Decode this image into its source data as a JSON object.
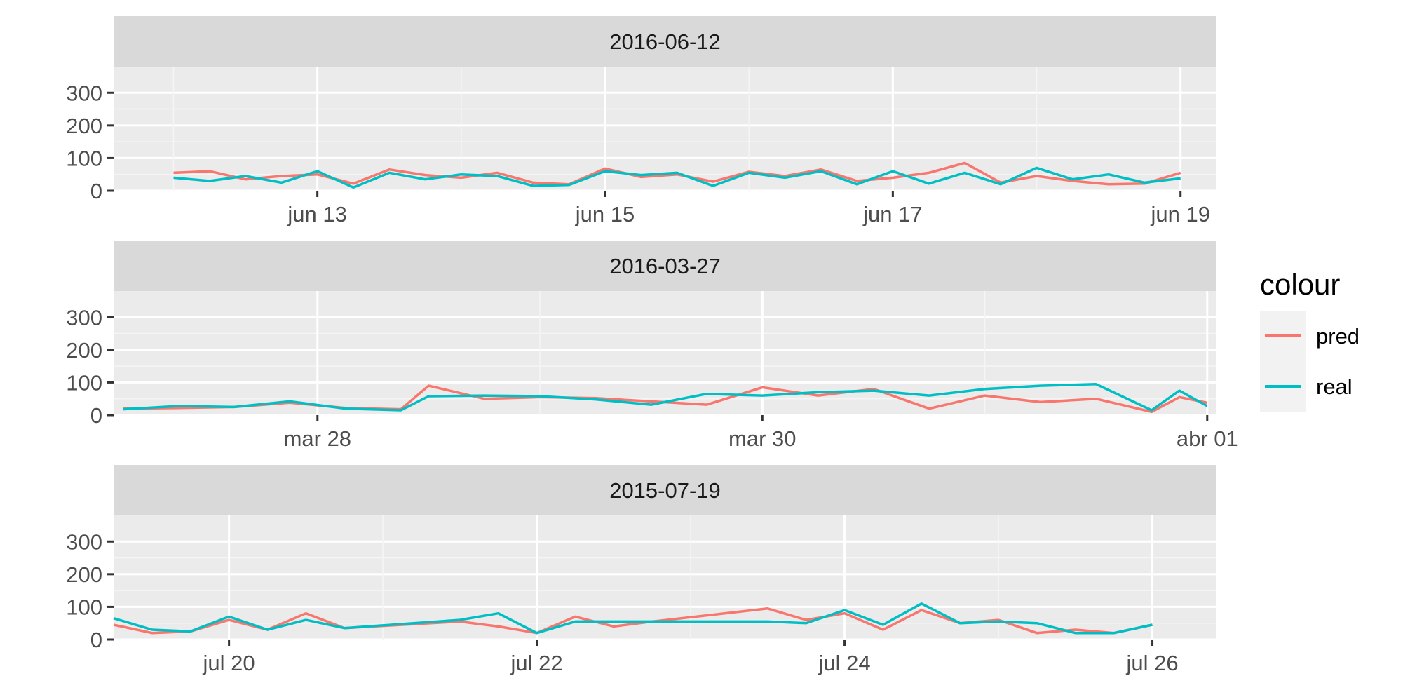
{
  "chart_data": {
    "type": "line",
    "facet_by": "date",
    "y_ticks": [
      0,
      100,
      200,
      300
    ],
    "ylim": [
      0,
      380
    ],
    "legend": {
      "title": "colour",
      "placement": "right",
      "entries": [
        {
          "name": "pred",
          "color": "#F8766D"
        },
        {
          "name": "real",
          "color": "#00BFC4"
        }
      ]
    },
    "panels": [
      {
        "title": "2016-06-12",
        "x_range": [
          "2016-06-11 14:00",
          "2016-06-19 06:00"
        ],
        "x_ticks": [
          {
            "label": "jun 13",
            "value": "2016-06-13 00:00"
          },
          {
            "label": "jun 15",
            "value": "2016-06-15 00:00"
          },
          {
            "label": "jun 17",
            "value": "2016-06-17 00:00"
          },
          {
            "label": "jun 19",
            "value": "2016-06-19 00:00"
          }
        ],
        "series": [
          {
            "name": "pred",
            "x": [
              "2016-06-12 00:00",
              "2016-06-12 06:00",
              "2016-06-12 12:00",
              "2016-06-12 18:00",
              "2016-06-13 00:00",
              "2016-06-13 06:00",
              "2016-06-13 12:00",
              "2016-06-13 18:00",
              "2016-06-14 00:00",
              "2016-06-14 06:00",
              "2016-06-14 12:00",
              "2016-06-14 18:00",
              "2016-06-15 00:00",
              "2016-06-15 06:00",
              "2016-06-15 12:00",
              "2016-06-15 18:00",
              "2016-06-16 00:00",
              "2016-06-16 06:00",
              "2016-06-16 12:00",
              "2016-06-16 18:00",
              "2016-06-17 00:00",
              "2016-06-17 06:00",
              "2016-06-17 12:00",
              "2016-06-17 18:00",
              "2016-06-18 00:00",
              "2016-06-18 06:00",
              "2016-06-18 12:00",
              "2016-06-18 18:00",
              "2016-06-19 00:00"
            ],
            "values": [
              55,
              60,
              35,
              45,
              50,
              22,
              65,
              48,
              40,
              55,
              25,
              20,
              68,
              42,
              50,
              28,
              58,
              45,
              65,
              30,
              40,
              55,
              85,
              25,
              45,
              30,
              20,
              22,
              55
            ]
          },
          {
            "name": "real",
            "x": [
              "2016-06-12 00:00",
              "2016-06-12 06:00",
              "2016-06-12 12:00",
              "2016-06-12 18:00",
              "2016-06-13 00:00",
              "2016-06-13 06:00",
              "2016-06-13 12:00",
              "2016-06-13 18:00",
              "2016-06-14 00:00",
              "2016-06-14 06:00",
              "2016-06-14 12:00",
              "2016-06-14 18:00",
              "2016-06-15 00:00",
              "2016-06-15 06:00",
              "2016-06-15 12:00",
              "2016-06-15 18:00",
              "2016-06-16 00:00",
              "2016-06-16 06:00",
              "2016-06-16 12:00",
              "2016-06-16 18:00",
              "2016-06-17 00:00",
              "2016-06-17 06:00",
              "2016-06-17 12:00",
              "2016-06-17 18:00",
              "2016-06-18 00:00",
              "2016-06-18 06:00",
              "2016-06-18 12:00",
              "2016-06-18 18:00",
              "2016-06-19 00:00"
            ],
            "values": [
              40,
              30,
              45,
              25,
              60,
              10,
              55,
              35,
              50,
              45,
              15,
              18,
              60,
              48,
              55,
              15,
              55,
              40,
              60,
              20,
              60,
              22,
              55,
              20,
              70,
              35,
              50,
              25,
              38
            ]
          }
        ]
      },
      {
        "title": "2016-03-27",
        "x_range": [
          "2016-03-27 02:00",
          "2016-04-01 01:00"
        ],
        "x_ticks": [
          {
            "label": "mar 28",
            "value": "2016-03-28 00:00"
          },
          {
            "label": "mar 30",
            "value": "2016-03-30 00:00"
          },
          {
            "label": "abr 01",
            "value": "2016-04-01 00:00"
          }
        ],
        "series": [
          {
            "name": "pred",
            "x": [
              "2016-03-27 03:00",
              "2016-03-27 09:00",
              "2016-03-27 15:00",
              "2016-03-27 21:00",
              "2016-03-28 03:00",
              "2016-03-28 09:00",
              "2016-03-28 12:00",
              "2016-03-28 18:00",
              "2016-03-29 00:00",
              "2016-03-29 06:00",
              "2016-03-29 12:00",
              "2016-03-29 18:00",
              "2016-03-30 00:00",
              "2016-03-30 06:00",
              "2016-03-30 12:00",
              "2016-03-30 18:00",
              "2016-03-31 00:00",
              "2016-03-31 06:00",
              "2016-03-31 12:00",
              "2016-03-31 18:00",
              "2016-03-31 21:00",
              "2016-04-01 00:00"
            ],
            "values": [
              20,
              22,
              25,
              38,
              22,
              18,
              90,
              50,
              55,
              52,
              42,
              32,
              85,
              60,
              80,
              20,
              60,
              40,
              50,
              10,
              55,
              38
            ]
          },
          {
            "name": "real",
            "x": [
              "2016-03-27 03:00",
              "2016-03-27 09:00",
              "2016-03-27 15:00",
              "2016-03-27 21:00",
              "2016-03-28 03:00",
              "2016-03-28 09:00",
              "2016-03-28 12:00",
              "2016-03-28 18:00",
              "2016-03-29 00:00",
              "2016-03-29 06:00",
              "2016-03-29 12:00",
              "2016-03-29 18:00",
              "2016-03-30 00:00",
              "2016-03-30 06:00",
              "2016-03-30 12:00",
              "2016-03-30 18:00",
              "2016-03-31 00:00",
              "2016-03-31 06:00",
              "2016-03-31 12:00",
              "2016-03-31 18:00",
              "2016-03-31 21:00",
              "2016-04-01 00:00"
            ],
            "values": [
              18,
              28,
              25,
              42,
              20,
              15,
              58,
              60,
              58,
              48,
              32,
              65,
              60,
              70,
              75,
              60,
              80,
              90,
              95,
              15,
              75,
              28
            ]
          }
        ]
      },
      {
        "title": "2015-07-19",
        "x_range": [
          "2015-07-19 06:00",
          "2015-07-26 10:00"
        ],
        "x_ticks": [
          {
            "label": "jul 20",
            "value": "2015-07-20 00:00"
          },
          {
            "label": "jul 22",
            "value": "2015-07-22 00:00"
          },
          {
            "label": "jul 24",
            "value": "2015-07-24 00:00"
          },
          {
            "label": "jul 26",
            "value": "2015-07-26 00:00"
          }
        ],
        "series": [
          {
            "name": "pred",
            "x": [
              "2015-07-19 06:00",
              "2015-07-19 12:00",
              "2015-07-19 18:00",
              "2015-07-20 00:00",
              "2015-07-20 06:00",
              "2015-07-20 12:00",
              "2015-07-20 18:00",
              "2015-07-21 12:00",
              "2015-07-21 18:00",
              "2015-07-22 00:00",
              "2015-07-22 06:00",
              "2015-07-22 12:00",
              "2015-07-22 18:00",
              "2015-07-23 12:00",
              "2015-07-23 18:00",
              "2015-07-24 00:00",
              "2015-07-24 06:00",
              "2015-07-24 12:00",
              "2015-07-24 18:00",
              "2015-07-25 00:00",
              "2015-07-25 06:00",
              "2015-07-25 12:00",
              "2015-07-25 18:00",
              "2015-07-26 00:00"
            ],
            "values": [
              45,
              20,
              25,
              60,
              30,
              80,
              35,
              55,
              40,
              20,
              70,
              40,
              55,
              95,
              60,
              80,
              30,
              90,
              50,
              60,
              20,
              30,
              20,
              45
            ]
          },
          {
            "name": "real",
            "x": [
              "2015-07-19 06:00",
              "2015-07-19 12:00",
              "2015-07-19 18:00",
              "2015-07-20 00:00",
              "2015-07-20 06:00",
              "2015-07-20 12:00",
              "2015-07-20 18:00",
              "2015-07-21 12:00",
              "2015-07-21 18:00",
              "2015-07-22 00:00",
              "2015-07-22 06:00",
              "2015-07-22 12:00",
              "2015-07-22 18:00",
              "2015-07-23 12:00",
              "2015-07-23 18:00",
              "2015-07-24 00:00",
              "2015-07-24 06:00",
              "2015-07-24 12:00",
              "2015-07-24 18:00",
              "2015-07-25 00:00",
              "2015-07-25 06:00",
              "2015-07-25 12:00",
              "2015-07-25 18:00",
              "2015-07-26 00:00"
            ],
            "values": [
              65,
              30,
              25,
              70,
              30,
              60,
              35,
              60,
              80,
              20,
              55,
              55,
              55,
              55,
              50,
              90,
              45,
              110,
              50,
              55,
              50,
              20,
              20,
              45
            ]
          }
        ]
      }
    ]
  }
}
